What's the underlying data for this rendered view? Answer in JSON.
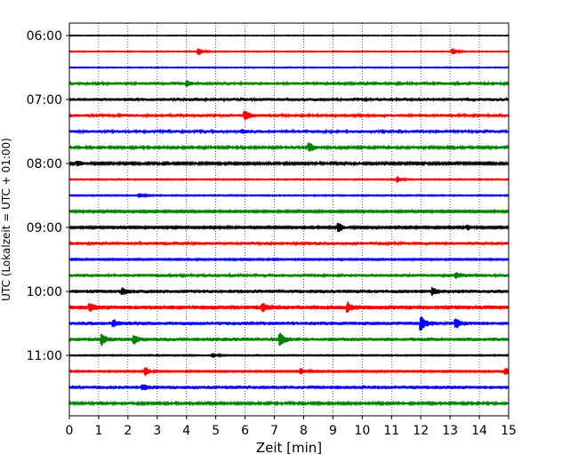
{
  "chart_data": {
    "type": "line",
    "title": "",
    "xlabel": "Zeit  [min]",
    "ylabel": "UTC (Lokalzeit = UTC + 01:00)",
    "xlim": [
      0,
      15
    ],
    "x_ticks": [
      "0",
      "1",
      "2",
      "3",
      "4",
      "5",
      "6",
      "7",
      "8",
      "9",
      "10",
      "11",
      "12",
      "13",
      "14",
      "15"
    ],
    "y_tick_labels": [
      "06:00",
      "07:00",
      "08:00",
      "09:00",
      "10:00",
      "11:00"
    ],
    "grid": "vertical dotted",
    "traces": [
      {
        "start": "06:00",
        "color": "#000000",
        "noise": 0.4,
        "events": []
      },
      {
        "start": "06:15",
        "color": "#ff0000",
        "noise": 0.5,
        "events": [
          {
            "t": 4.4,
            "amp": 5
          },
          {
            "t": 13.1,
            "amp": 4
          }
        ]
      },
      {
        "start": "06:30",
        "color": "#0000ff",
        "noise": 0.5,
        "events": []
      },
      {
        "start": "06:45",
        "color": "#008000",
        "noise": 1.5,
        "events": [
          {
            "t": 4.0,
            "amp": 3
          }
        ]
      },
      {
        "start": "07:00",
        "color": "#000000",
        "noise": 1.6,
        "events": []
      },
      {
        "start": "07:15",
        "color": "#ff0000",
        "noise": 1.5,
        "events": [
          {
            "t": 6.0,
            "amp": 6
          }
        ]
      },
      {
        "start": "07:30",
        "color": "#0000ff",
        "noise": 1.5,
        "events": [
          {
            "t": 5.9,
            "amp": 2
          }
        ]
      },
      {
        "start": "07:45",
        "color": "#008000",
        "noise": 1.3,
        "events": [
          {
            "t": 8.2,
            "amp": 6
          }
        ]
      },
      {
        "start": "08:00",
        "color": "#000000",
        "noise": 1.2,
        "events": [
          {
            "t": 0.3,
            "amp": 3
          }
        ]
      },
      {
        "start": "08:15",
        "color": "#ff0000",
        "noise": 0.6,
        "events": [
          {
            "t": 11.2,
            "amp": 4
          }
        ]
      },
      {
        "start": "08:30",
        "color": "#0000ff",
        "noise": 0.6,
        "events": [
          {
            "t": 2.4,
            "amp": 3
          }
        ]
      },
      {
        "start": "08:45",
        "color": "#008000",
        "noise": 1.0,
        "events": []
      },
      {
        "start": "09:00",
        "color": "#000000",
        "noise": 1.0,
        "events": [
          {
            "t": 9.2,
            "amp": 6
          },
          {
            "t": 13.6,
            "amp": 3
          }
        ]
      },
      {
        "start": "09:15",
        "color": "#ff0000",
        "noise": 1.6,
        "events": []
      },
      {
        "start": "09:30",
        "color": "#0000ff",
        "noise": 0.8,
        "events": []
      },
      {
        "start": "09:45",
        "color": "#008000",
        "noise": 1.6,
        "events": [
          {
            "t": 13.2,
            "amp": 3
          }
        ]
      },
      {
        "start": "10:00",
        "color": "#000000",
        "noise": 1.8,
        "events": [
          {
            "t": 1.8,
            "amp": 4
          },
          {
            "t": 12.4,
            "amp": 4
          }
        ]
      },
      {
        "start": "10:15",
        "color": "#ff0000",
        "noise": 2.2,
        "events": [
          {
            "t": 0.7,
            "amp": 4
          },
          {
            "t": 6.6,
            "amp": 4
          },
          {
            "t": 9.5,
            "amp": 5
          }
        ]
      },
      {
        "start": "10:30",
        "color": "#0000ff",
        "noise": 1.8,
        "events": [
          {
            "t": 1.5,
            "amp": 4
          },
          {
            "t": 12.0,
            "amp": 10
          },
          {
            "t": 13.2,
            "amp": 5
          }
        ]
      },
      {
        "start": "10:45",
        "color": "#008000",
        "noise": 1.8,
        "events": [
          {
            "t": 1.1,
            "amp": 7
          },
          {
            "t": 2.2,
            "amp": 5
          },
          {
            "t": 7.2,
            "amp": 8
          }
        ]
      },
      {
        "start": "11:00",
        "color": "#000000",
        "noise": 0.6,
        "events": [
          {
            "t": 4.9,
            "amp": 3
          }
        ]
      },
      {
        "start": "11:15",
        "color": "#ff0000",
        "noise": 0.8,
        "events": [
          {
            "t": 2.6,
            "amp": 6
          },
          {
            "t": 7.9,
            "amp": 4
          },
          {
            "t": 14.9,
            "amp": 4
          }
        ]
      },
      {
        "start": "11:30",
        "color": "#0000ff",
        "noise": 1.8,
        "events": [
          {
            "t": 2.5,
            "amp": 3
          }
        ]
      },
      {
        "start": "11:45",
        "color": "#008000",
        "noise": 1.3,
        "events": []
      }
    ]
  }
}
